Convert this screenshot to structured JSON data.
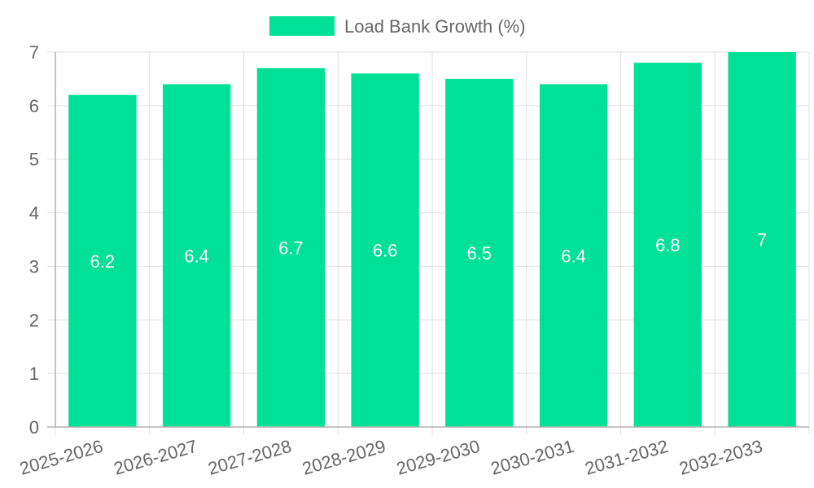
{
  "chart_data": {
    "type": "bar",
    "categories": [
      "2025-2026",
      "2026-2027",
      "2027-2028",
      "2028-2029",
      "2029-2030",
      "2030-2031",
      "2031-2032",
      "2032-2033"
    ],
    "series": [
      {
        "name": "Load Bank Growth (%)",
        "values": [
          6.2,
          6.4,
          6.7,
          6.6,
          6.5,
          6.4,
          6.8,
          7
        ],
        "color": "#00e096"
      }
    ],
    "ylim": [
      0,
      7
    ],
    "yticks": [
      "0",
      "1",
      "2",
      "3",
      "4",
      "5",
      "6",
      "7"
    ],
    "grid": true,
    "legend_position": "top-center",
    "data_labels": [
      "6.2",
      "6.4",
      "6.7",
      "6.6",
      "6.5",
      "6.4",
      "6.8",
      "7"
    ]
  }
}
